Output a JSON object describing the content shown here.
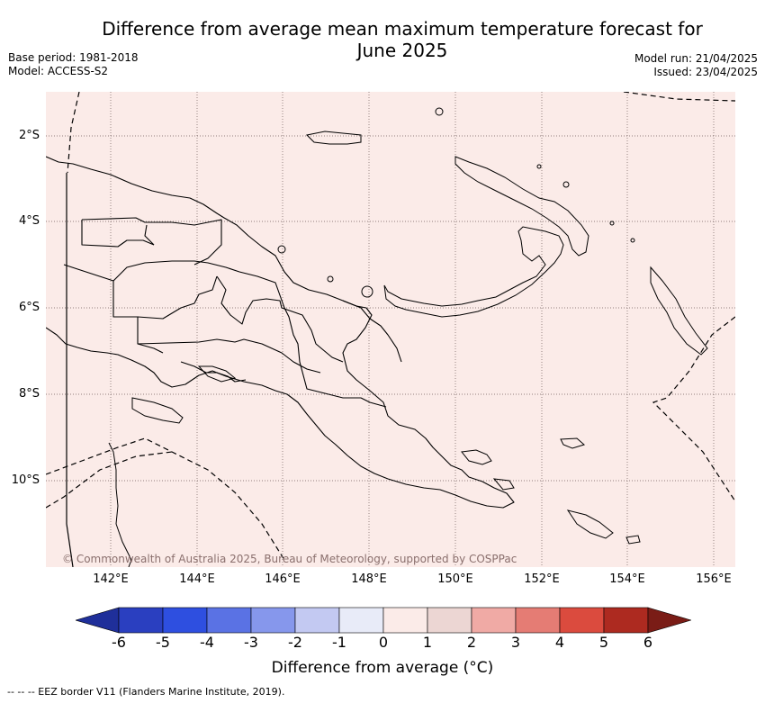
{
  "title": "Difference from average mean maximum temperature forecast for June 2025",
  "meta_left": {
    "base_period": "Base period: 1981-2018",
    "model": "Model: ACCESS-S2"
  },
  "meta_right": {
    "model_run": "Model run: 21/04/2025",
    "issued": "Issued: 23/04/2025"
  },
  "map": {
    "fill_color": "#fbebe8",
    "lat_labels": [
      "2°S",
      "4°S",
      "6°S",
      "8°S",
      "10°S"
    ],
    "lon_labels": [
      "142°E",
      "144°E",
      "146°E",
      "148°E",
      "150°E",
      "152°E",
      "154°E",
      "156°E"
    ],
    "copyright": "© Commonwealth of Australia 2025, Bureau of Meteorology, supported by COSPPac"
  },
  "colorbar": {
    "ticks": [
      "-6",
      "-5",
      "-4",
      "-3",
      "-2",
      "-1",
      "0",
      "1",
      "2",
      "3",
      "4",
      "5",
      "6"
    ],
    "colors": [
      "#1f2f9a",
      "#2a3fc0",
      "#2e4fe0",
      "#5a72e4",
      "#8697ec",
      "#c3c9f2",
      "#e8ebf8",
      "#fbebe8",
      "#ecd6d3",
      "#f0aaa5",
      "#e57c74",
      "#db4b3e",
      "#ad2a20",
      "#7a1c16"
    ],
    "label": "Difference from average (°C)"
  },
  "footer": {
    "eez_note": "--  --  -- EEZ border V11 (Flanders Marine Institute, 2019)."
  }
}
